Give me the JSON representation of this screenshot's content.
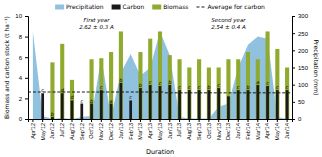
{
  "chart_data": {
    "type": "bar",
    "xlabel": "Duration",
    "ylabel": "Biomass and carbon stock (t ha⁻¹)",
    "y2label": "Precipitation (mm)",
    "categories": [
      "Apr'12",
      "May'12",
      "Jun'12",
      "Jul'12",
      "Aug'12",
      "Sep'12",
      "Oct'12",
      "Nov'12",
      "Dec'12",
      "Jan'13",
      "Feb'13",
      "Mar'13",
      "Apr'13",
      "May'13",
      "Jun'13",
      "Jul'13",
      "Aug'13",
      "Sep'13",
      "Oct'13",
      "Nov'13",
      "Dec'13",
      "Jan'14",
      "Feb'14",
      "Mar'14",
      "Apr'14",
      "May'14",
      "Jun'14"
    ],
    "series": [
      {
        "name": "Precipitation",
        "type": "area",
        "axis": "y2",
        "color": "#6baed6",
        "values": [
          255,
          9,
          0,
          3,
          0,
          6,
          9,
          180,
          6,
          135,
          189,
          126,
          150,
          255,
          186,
          6,
          1.5,
          1.5,
          1.5,
          36,
          45,
          150,
          216,
          240,
          234,
          6,
          0
        ]
      },
      {
        "name": "Carbon",
        "type": "bar",
        "color": "#1a1a1a",
        "values": [
          0.0,
          2.5,
          0.2,
          2.5,
          1.8,
          1.5,
          1.5,
          2.8,
          1.5,
          3.5,
          1.8,
          3.0,
          3.3,
          3.2,
          3.3,
          2.8,
          2.8,
          2.8,
          2.8,
          3.0,
          2.2,
          2.8,
          2.8,
          3.3,
          3.2,
          2.8,
          2.8
        ],
        "letters": [
          null,
          "c",
          "b",
          "d",
          "d",
          "c",
          "b",
          "c",
          "a",
          "b",
          "c",
          "b",
          "c",
          "c",
          "b",
          "c",
          "c",
          "c",
          "b",
          "c",
          null,
          "c",
          "b",
          "a",
          "c",
          "c",
          "c"
        ]
      },
      {
        "name": "Biomass",
        "type": "bar",
        "color": "#8faa2e",
        "values": [
          0.0,
          0.0,
          5.5,
          7.3,
          3.8,
          0.0,
          5.8,
          5.9,
          6.5,
          8.5,
          0.0,
          6.5,
          7.8,
          8.5,
          6.2,
          5.8,
          5.0,
          5.8,
          5.0,
          5.0,
          5.8,
          5.8,
          6.5,
          5.8,
          8.5,
          6.8,
          5.0
        ]
      },
      {
        "name": "Average for carbon",
        "type": "line",
        "line_style": "dashed",
        "color": "#1a1a1a",
        "values": [
          2.62,
          2.62,
          2.62,
          2.62,
          2.62,
          2.62,
          2.62,
          2.62,
          2.62,
          2.62,
          2.62,
          2.62,
          2.62,
          2.62,
          2.54,
          2.54,
          2.54,
          2.54,
          2.54,
          2.54,
          2.54,
          2.54,
          2.54,
          2.54,
          2.54,
          2.54,
          2.54
        ]
      }
    ],
    "annotations": [
      [
        "First year",
        "2.62 ± 0.3 A"
      ],
      [
        "Second year",
        "2.54 ± 0.4 A"
      ]
    ],
    "ylim": [
      0,
      10
    ],
    "yticks": [
      0,
      2,
      4,
      6,
      8,
      10
    ],
    "y2lim": [
      0,
      300
    ],
    "y2ticks": [
      0,
      50,
      100,
      150,
      200,
      250,
      300
    ],
    "grid": false,
    "legend": "upper center"
  }
}
